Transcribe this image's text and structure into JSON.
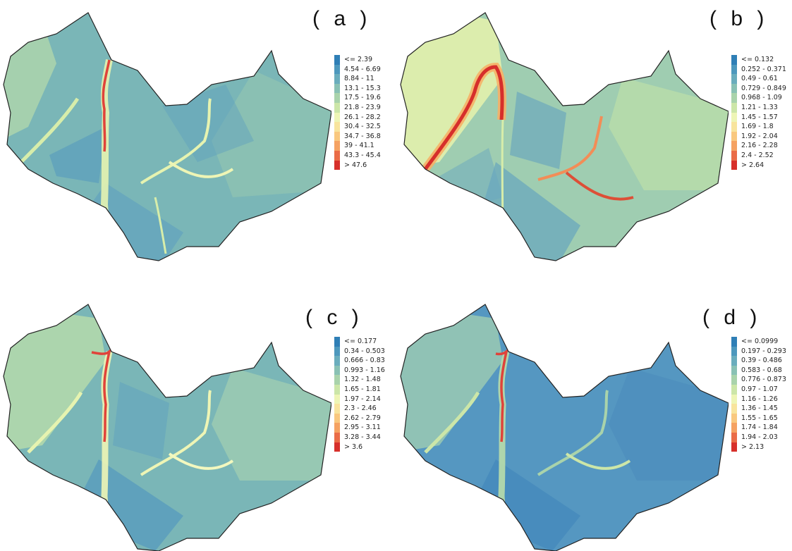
{
  "panels": [
    {
      "id": "a",
      "label": "( a )",
      "legend": [
        "<= 2.39",
        "4.54 - 6.69",
        "8.84 - 11",
        "13.1 - 15.3",
        "17.5 - 19.6",
        "21.8 - 23.9",
        "26.1 - 28.2",
        "30.4 - 32.5",
        "34.7 - 36.8",
        "39 - 41.1",
        "43.3 - 45.4",
        "> 47.6"
      ]
    },
    {
      "id": "b",
      "label": "( b )",
      "legend": [
        "<= 0.132",
        "0.252 - 0.371",
        "0.49 - 0.61",
        "0.729 - 0.849",
        "0.968 - 1.09",
        "1.21 - 1.33",
        "1.45 - 1.57",
        "1.69 - 1.8",
        "1.92 - 2.04",
        "2.16 - 2.28",
        "2.4 - 2.52",
        "> 2.64"
      ]
    },
    {
      "id": "c",
      "label": "( c )",
      "legend": [
        "<= 0.177",
        "0.34 - 0.503",
        "0.666 - 0.83",
        "0.993 - 1.16",
        "1.32 - 1.48",
        "1.65 - 1.81",
        "1.97 - 2.14",
        "2.3 - 2.46",
        "2.62 - 2.79",
        "2.95 - 3.11",
        "3.28 - 3.44",
        "> 3.6"
      ]
    },
    {
      "id": "d",
      "label": "( d )",
      "legend": [
        "<= 0.0999",
        "0.197 - 0.293",
        "0.39 - 0.486",
        "0.583 - 0.68",
        "0.776 - 0.873",
        "0.97 - 1.07",
        "1.16 - 1.26",
        "1.36 - 1.45",
        "1.55 - 1.65",
        "1.74 - 1.84",
        "1.94 - 2.03",
        "> 2.13"
      ]
    }
  ],
  "legend_colors": [
    "#2f7fb6",
    "#4d98bd",
    "#6aadbd",
    "#89c1b4",
    "#a9d3ab",
    "#cce6a8",
    "#eef5b5",
    "#f8e49d",
    "#f9c87f",
    "#f5a262",
    "#ea6c47",
    "#d7302b"
  ]
}
